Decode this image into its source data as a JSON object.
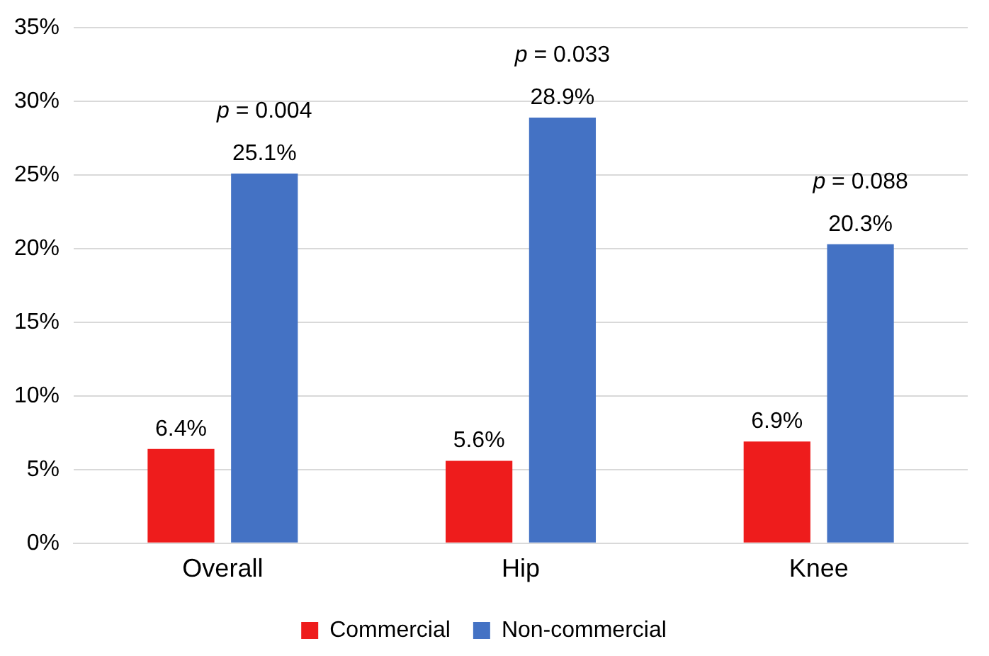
{
  "chart_data": {
    "type": "bar",
    "categories": [
      "Overall",
      "Hip",
      "Knee"
    ],
    "series": [
      {
        "name": "Commercial",
        "color": "#ee1c1c",
        "values": [
          6.4,
          5.6,
          6.9
        ],
        "value_labels": [
          "6.4%",
          "5.6%",
          "6.9%"
        ]
      },
      {
        "name": "Non-commercial",
        "color": "#4472c4",
        "values": [
          25.1,
          28.9,
          20.3
        ],
        "value_labels": [
          "25.1%",
          "28.9%",
          "20.3%"
        ]
      }
    ],
    "ylim": [
      0,
      35
    ],
    "yticks": [
      {
        "value": 0,
        "label": "0%"
      },
      {
        "value": 5,
        "label": "5%"
      },
      {
        "value": 10,
        "label": "10%"
      },
      {
        "value": 15,
        "label": "15%"
      },
      {
        "value": 20,
        "label": "20%"
      },
      {
        "value": 25,
        "label": "25%"
      },
      {
        "value": 30,
        "label": "30%"
      },
      {
        "value": 35,
        "label": "35%"
      }
    ],
    "grid": "y",
    "legend": "bottom",
    "annotations": [
      "p = 0.004",
      "p = 0.033",
      "p = 0.088"
    ]
  }
}
